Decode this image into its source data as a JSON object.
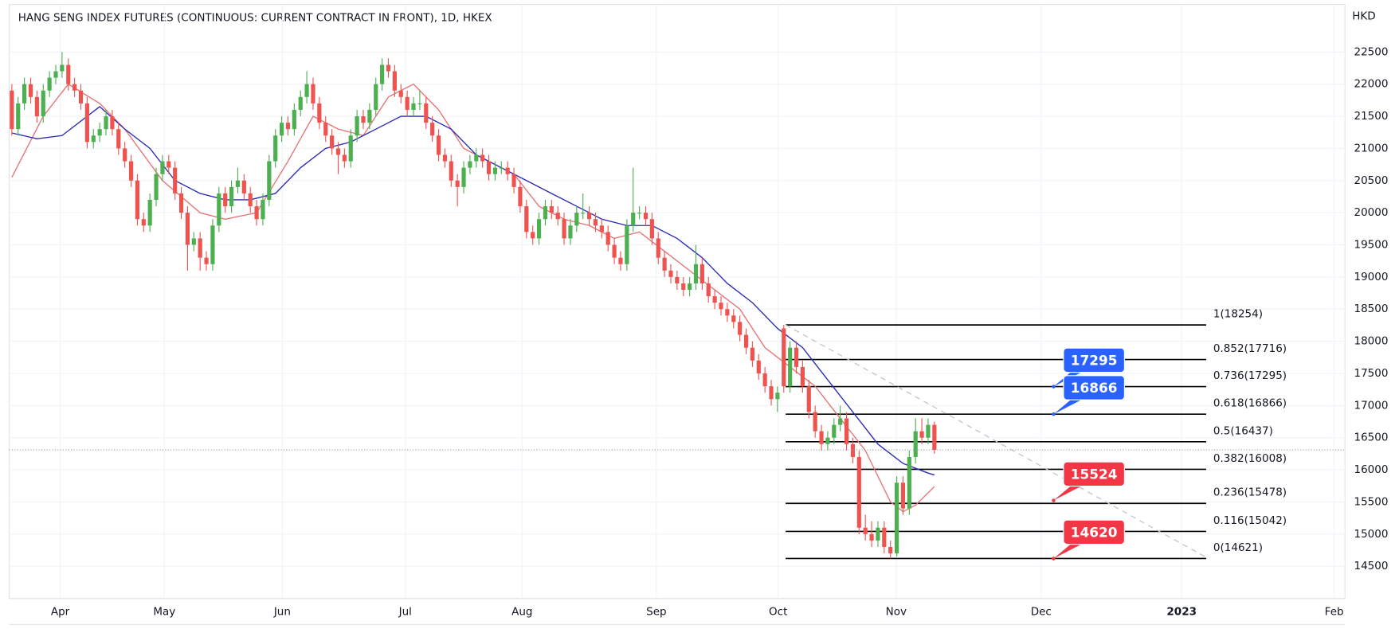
{
  "chart_data": {
    "type": "candlestick",
    "title": "HANG SENG INDEX FUTURES (CONTINUOUS: CURRENT CONTRACT IN FRONT), 1D, HKEX",
    "y_axis_label": "HKD",
    "up_color": "#4caf50",
    "down_color": "#ef5350",
    "grid": true,
    "last_price_line": true,
    "xlim": [
      -0.43,
      212.43
    ],
    "xticks": [
      {
        "value": 7.7,
        "label": "Apr"
      },
      {
        "value": 24.3,
        "label": "May"
      },
      {
        "value": 43.1,
        "label": "Jun"
      },
      {
        "value": 62.7,
        "label": "Jul"
      },
      {
        "value": 81.3,
        "label": "Aug"
      },
      {
        "value": 102.7,
        "label": "Sep"
      },
      {
        "value": 122.1,
        "label": "Oct"
      },
      {
        "value": 140.9,
        "label": "Nov"
      },
      {
        "value": 164,
        "label": "Dec"
      },
      {
        "value": 186.4,
        "label": "2023"
      },
      {
        "value": 210.7,
        "label": "Feb"
      }
    ],
    "ylim": [
      13998,
      23239
    ],
    "yticks": [
      14500,
      15000,
      15500,
      16000,
      16500,
      17000,
      17500,
      18000,
      18500,
      19000,
      19500,
      20000,
      20500,
      21000,
      21500,
      22000,
      22500
    ],
    "ohlc": [
      [
        21900,
        22000,
        21200,
        21300
      ],
      [
        21300,
        21800,
        21200,
        21700
      ],
      [
        21700,
        22100,
        21600,
        22000
      ],
      [
        22000,
        22100,
        21700,
        21800
      ],
      [
        21800,
        21900,
        21400,
        21500
      ],
      [
        21500,
        22000,
        21400,
        21900
      ],
      [
        21900,
        22200,
        21800,
        22100
      ],
      [
        22100,
        22300,
        22000,
        22200
      ],
      [
        22200,
        22500,
        22100,
        22300
      ],
      [
        22300,
        22400,
        21900,
        22000
      ],
      [
        22000,
        22100,
        21800,
        21900
      ],
      [
        21900,
        22000,
        21600,
        21700
      ],
      [
        21700,
        21800,
        21000,
        21100
      ],
      [
        21100,
        21300,
        21000,
        21200
      ],
      [
        21200,
        21400,
        21100,
        21300
      ],
      [
        21300,
        21600,
        21200,
        21500
      ],
      [
        21500,
        21600,
        21200,
        21300
      ],
      [
        21300,
        21400,
        20900,
        21000
      ],
      [
        21000,
        21100,
        20700,
        20800
      ],
      [
        20800,
        20900,
        20400,
        20500
      ],
      [
        20500,
        20600,
        19800,
        19900
      ],
      [
        19900,
        20000,
        19700,
        19800
      ],
      [
        19800,
        20300,
        19700,
        20200
      ],
      [
        20200,
        20700,
        20100,
        20600
      ],
      [
        20600,
        20900,
        20500,
        20800
      ],
      [
        20800,
        20900,
        20600,
        20700
      ],
      [
        20700,
        20800,
        20200,
        20300
      ],
      [
        20300,
        20400,
        19900,
        20000
      ],
      [
        20000,
        20100,
        19100,
        19500
      ],
      [
        19500,
        19700,
        19400,
        19600
      ],
      [
        19600,
        19700,
        19100,
        19300
      ],
      [
        19300,
        19400,
        19100,
        19200
      ],
      [
        19200,
        19900,
        19100,
        19800
      ],
      [
        19800,
        20400,
        19700,
        20300
      ],
      [
        20300,
        20400,
        20000,
        20100
      ],
      [
        20100,
        20500,
        20000,
        20400
      ],
      [
        20400,
        20700,
        20300,
        20500
      ],
      [
        20500,
        20600,
        20200,
        20300
      ],
      [
        20300,
        20400,
        20000,
        20100
      ],
      [
        20100,
        20200,
        19800,
        19900
      ],
      [
        19900,
        20300,
        19800,
        20200
      ],
      [
        20200,
        20900,
        20100,
        20800
      ],
      [
        20800,
        21300,
        20700,
        21200
      ],
      [
        21200,
        21500,
        21100,
        21400
      ],
      [
        21400,
        21500,
        21200,
        21300
      ],
      [
        21300,
        21700,
        21200,
        21600
      ],
      [
        21600,
        21900,
        21500,
        21800
      ],
      [
        21800,
        22200,
        21700,
        22000
      ],
      [
        22000,
        22100,
        21600,
        21700
      ],
      [
        21700,
        21800,
        21300,
        21400
      ],
      [
        21400,
        21500,
        21100,
        21200
      ],
      [
        21200,
        21300,
        20900,
        21000
      ],
      [
        21000,
        21100,
        20600,
        20900
      ],
      [
        20900,
        21000,
        20700,
        20800
      ],
      [
        20800,
        21300,
        20700,
        21200
      ],
      [
        21200,
        21600,
        21100,
        21500
      ],
      [
        21500,
        21600,
        21300,
        21400
      ],
      [
        21400,
        21700,
        21300,
        21600
      ],
      [
        21600,
        22100,
        21500,
        22000
      ],
      [
        22000,
        22400,
        21900,
        22300
      ],
      [
        22300,
        22400,
        22100,
        22200
      ],
      [
        22200,
        22300,
        21800,
        21900
      ],
      [
        21900,
        22000,
        21700,
        21800
      ],
      [
        21800,
        21900,
        21500,
        21600
      ],
      [
        21600,
        21800,
        21500,
        21700
      ],
      [
        21700,
        21900,
        21600,
        21700
      ],
      [
        21700,
        21800,
        21300,
        21400
      ],
      [
        21400,
        21500,
        21100,
        21200
      ],
      [
        21200,
        21300,
        20800,
        20900
      ],
      [
        20900,
        21000,
        20700,
        20800
      ],
      [
        20800,
        20900,
        20400,
        20500
      ],
      [
        20500,
        20600,
        20100,
        20400
      ],
      [
        20400,
        20800,
        20300,
        20700
      ],
      [
        20700,
        20900,
        20600,
        20800
      ],
      [
        20800,
        21000,
        20700,
        20900
      ],
      [
        20900,
        21000,
        20700,
        20800
      ],
      [
        20800,
        20900,
        20500,
        20600
      ],
      [
        20600,
        20800,
        20500,
        20700
      ],
      [
        20700,
        20800,
        20600,
        20700
      ],
      [
        20700,
        20800,
        20500,
        20600
      ],
      [
        20600,
        20700,
        20300,
        20400
      ],
      [
        20400,
        20500,
        20000,
        20100
      ],
      [
        20100,
        20200,
        19600,
        19700
      ],
      [
        19700,
        19800,
        19500,
        19600
      ],
      [
        19600,
        20000,
        19500,
        19900
      ],
      [
        19900,
        20200,
        19800,
        20100
      ],
      [
        20100,
        20200,
        19900,
        20000
      ],
      [
        20000,
        20100,
        19800,
        19900
      ],
      [
        19900,
        20000,
        19500,
        19600
      ],
      [
        19600,
        19900,
        19500,
        19800
      ],
      [
        19800,
        20100,
        19700,
        20000
      ],
      [
        20000,
        20300,
        19900,
        20000
      ],
      [
        20000,
        20100,
        19800,
        19900
      ],
      [
        19900,
        20000,
        19700,
        19800
      ],
      [
        19800,
        19900,
        19600,
        19700
      ],
      [
        19700,
        19800,
        19400,
        19500
      ],
      [
        19500,
        19600,
        19200,
        19300
      ],
      [
        19300,
        19400,
        19100,
        19200
      ],
      [
        19200,
        19900,
        19100,
        19800
      ],
      [
        19800,
        20700,
        19700,
        20000
      ],
      [
        20000,
        20100,
        19900,
        20000
      ],
      [
        20000,
        20100,
        19800,
        19900
      ],
      [
        19900,
        20000,
        19500,
        19600
      ],
      [
        19600,
        19700,
        19200,
        19300
      ],
      [
        19300,
        19400,
        19000,
        19100
      ],
      [
        19100,
        19200,
        18900,
        19000
      ],
      [
        19000,
        19100,
        18800,
        18900
      ],
      [
        18900,
        19000,
        18700,
        18800
      ],
      [
        18800,
        19000,
        18700,
        18900
      ],
      [
        18900,
        19500,
        18800,
        19200
      ],
      [
        19200,
        19300,
        18800,
        18900
      ],
      [
        18900,
        19000,
        18600,
        18700
      ],
      [
        18700,
        18800,
        18500,
        18600
      ],
      [
        18600,
        18700,
        18400,
        18500
      ],
      [
        18500,
        18600,
        18300,
        18400
      ],
      [
        18400,
        18500,
        18200,
        18300
      ],
      [
        18300,
        18400,
        18000,
        18100
      ],
      [
        18100,
        18200,
        17800,
        17900
      ],
      [
        17900,
        18000,
        17600,
        17700
      ],
      [
        17700,
        17800,
        17400,
        17500
      ],
      [
        17500,
        17600,
        17200,
        17300
      ],
      [
        17300,
        17400,
        17000,
        17100
      ],
      [
        17100,
        17300,
        16900,
        17200
      ],
      [
        18200,
        18254,
        17200,
        17300
      ],
      [
        17300,
        18000,
        17200,
        17900
      ],
      [
        17900,
        18000,
        17500,
        17600
      ],
      [
        17600,
        17700,
        17200,
        17300
      ],
      [
        17300,
        17400,
        16800,
        16900
      ],
      [
        16900,
        17000,
        16500,
        16600
      ],
      [
        16600,
        16700,
        16300,
        16400
      ],
      [
        16400,
        16600,
        16300,
        16500
      ],
      [
        16500,
        16800,
        16400,
        16700
      ],
      [
        16700,
        17000,
        16600,
        16800
      ],
      [
        16800,
        16900,
        16300,
        16400
      ],
      [
        16400,
        16500,
        16100,
        16200
      ],
      [
        16200,
        16300,
        15000,
        15100
      ],
      [
        15100,
        15300,
        14900,
        15000
      ],
      [
        15000,
        15200,
        14800,
        14900
      ],
      [
        14900,
        15200,
        14800,
        15100
      ],
      [
        15100,
        15200,
        14700,
        14800
      ],
      [
        14800,
        14900,
        14621,
        14700
      ],
      [
        14700,
        15900,
        14650,
        15800
      ],
      [
        15800,
        15900,
        15300,
        15400
      ],
      [
        15400,
        16300,
        15300,
        16200
      ],
      [
        16200,
        16800,
        16100,
        16600
      ],
      [
        16600,
        16800,
        16400,
        16500
      ],
      [
        16500,
        16800,
        16400,
        16700
      ],
      [
        16700,
        16750,
        16250,
        16310
      ]
    ],
    "lines": [
      {
        "color": "#e57373",
        "x": [
          0,
          5,
          9,
          14,
          18,
          24,
          30,
          34,
          39,
          44,
          48,
          52,
          56,
          60,
          64,
          68,
          72,
          76,
          80,
          84,
          88,
          92,
          96,
          100,
          104,
          108,
          112,
          116,
          120,
          124,
          128,
          132,
          136,
          140,
          142,
          144,
          147
        ],
        "values": [
          20550,
          21500,
          22000,
          21700,
          21300,
          20500,
          20000,
          19900,
          20000,
          20800,
          21500,
          21300,
          21200,
          21800,
          22000,
          21600,
          21000,
          20800,
          20600,
          20100,
          19900,
          19800,
          19600,
          19700,
          19400,
          19100,
          18800,
          18500,
          17900,
          17600,
          17300,
          16800,
          16300,
          15500,
          15350,
          15450,
          15740
        ]
      },
      {
        "color": "#2a2ab8",
        "x": [
          0,
          4,
          8,
          14,
          18,
          22,
          26,
          30,
          34,
          38,
          42,
          46,
          50,
          54,
          58,
          62,
          66,
          70,
          74,
          78,
          82,
          86,
          90,
          94,
          98,
          102,
          106,
          110,
          114,
          118,
          122,
          126,
          130,
          134,
          138,
          142,
          146,
          147
        ],
        "values": [
          21240,
          21150,
          21200,
          21650,
          21300,
          21000,
          20500,
          20300,
          20200,
          20200,
          20300,
          20700,
          21000,
          21100,
          21300,
          21500,
          21500,
          21300,
          20900,
          20700,
          20500,
          20300,
          20100,
          19900,
          19800,
          19800,
          19600,
          19300,
          18900,
          18600,
          18200,
          17900,
          17400,
          16900,
          16400,
          16100,
          15950,
          15920
        ]
      }
    ],
    "fib_range": [
      123.3,
      190.3
    ],
    "fib_levels": [
      {
        "value": 18254,
        "label": "1(18254)"
      },
      {
        "value": 17716,
        "label": "0.852(17716)"
      },
      {
        "value": 17295,
        "label": "0.736(17295)"
      },
      {
        "value": 16866,
        "label": "0.618(16866)"
      },
      {
        "value": 16437,
        "label": "0.5(16437)"
      },
      {
        "value": 16008,
        "label": "0.382(16008)"
      },
      {
        "value": 15478,
        "label": "0.236(15478)"
      },
      {
        "value": 15042,
        "label": "0.116(15042)"
      },
      {
        "value": 14621,
        "label": "0(14621)"
      }
    ],
    "trend_line": {
      "x": [
        123.3,
        190.3
      ],
      "y": [
        18254,
        14640
      ]
    },
    "callout_x": 166,
    "callouts": [
      {
        "value": 17295,
        "color": "#2962ff"
      },
      {
        "value": 16866,
        "color": "#2962ff"
      },
      {
        "value": 15524,
        "color": "#f23645"
      },
      {
        "value": 14620,
        "color": "#f23645"
      }
    ]
  }
}
